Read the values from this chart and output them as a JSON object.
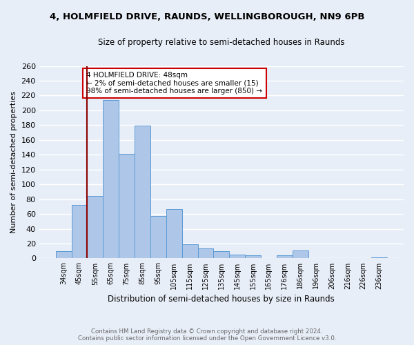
{
  "title": "4, HOLMFIELD DRIVE, RAUNDS, WELLINGBOROUGH, NN9 6PB",
  "subtitle": "Size of property relative to semi-detached houses in Raunds",
  "xlabel": "Distribution of semi-detached houses by size in Raunds",
  "ylabel": "Number of semi-detached properties",
  "categories": [
    "34sqm",
    "45sqm",
    "55sqm",
    "65sqm",
    "75sqm",
    "85sqm",
    "95sqm",
    "105sqm",
    "115sqm",
    "125sqm",
    "135sqm",
    "145sqm",
    "155sqm",
    "165sqm",
    "176sqm",
    "186sqm",
    "196sqm",
    "206sqm",
    "216sqm",
    "226sqm",
    "236sqm"
  ],
  "values": [
    10,
    72,
    84,
    214,
    141,
    179,
    57,
    67,
    19,
    13,
    10,
    5,
    4,
    0,
    4,
    11,
    0,
    0,
    0,
    0,
    1
  ],
  "bar_color": "#aec6e8",
  "bar_edge_color": "#5b9bd5",
  "red_line_color": "#8b0000",
  "annotation_title": "4 HOLMFIELD DRIVE: 48sqm",
  "annotation_line1": "← 2% of semi-detached houses are smaller (15)",
  "annotation_line2": "98% of semi-detached houses are larger (850) →",
  "annotation_box_color": "#ffffff",
  "annotation_box_edge": "#cc0000",
  "ylim": [
    0,
    260
  ],
  "yticks": [
    0,
    20,
    40,
    60,
    80,
    100,
    120,
    140,
    160,
    180,
    200,
    220,
    240,
    260
  ],
  "footnote1": "Contains HM Land Registry data © Crown copyright and database right 2024.",
  "footnote2": "Contains public sector information licensed under the Open Government Licence v3.0.",
  "bg_color": "#e8eef8",
  "grid_color": "#ffffff",
  "red_line_index": 1.5
}
